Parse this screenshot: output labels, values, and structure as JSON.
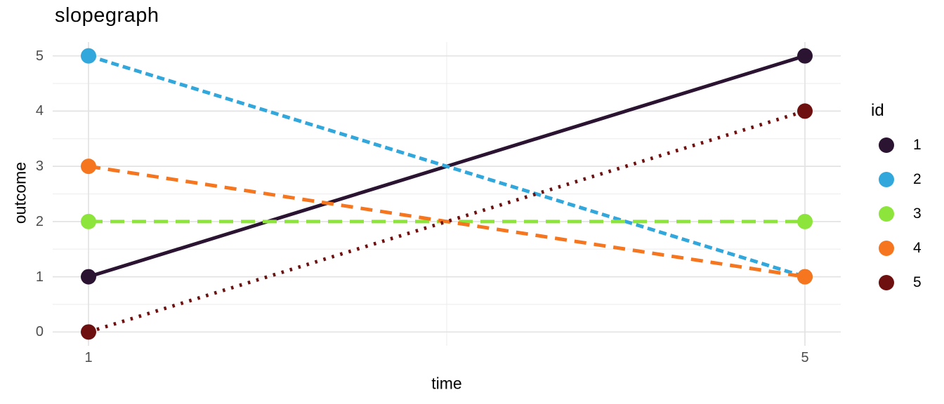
{
  "title": "slopegraph",
  "chart_data": {
    "type": "line",
    "subtype": "slopegraph",
    "title": "slopegraph",
    "xlabel": "time",
    "ylabel": "outcome",
    "x": [
      1,
      5
    ],
    "series": [
      {
        "name": "1",
        "values": [
          1,
          5
        ],
        "color": "#2b1432",
        "linetype": "solid",
        "dash": ""
      },
      {
        "name": "2",
        "values": [
          5,
          1
        ],
        "color": "#31a7dc",
        "linetype": "dashed",
        "dash": "11 6"
      },
      {
        "name": "3",
        "values": [
          2,
          2
        ],
        "color": "#8de53c",
        "linetype": "longdash",
        "dash": "20 11"
      },
      {
        "name": "4",
        "values": [
          3,
          1
        ],
        "color": "#f5761f",
        "linetype": "longdash",
        "dash": "17 11"
      },
      {
        "name": "5",
        "values": [
          0,
          4
        ],
        "color": "#6e100f",
        "linetype": "dotted",
        "dash": "3.5 9"
      }
    ],
    "xlim": [
      1,
      5
    ],
    "ylim": [
      0,
      5
    ],
    "x_major_ticks": [
      1,
      5
    ],
    "x_minor_ticks": [
      3
    ],
    "y_major_ticks": [
      0,
      1,
      2,
      3,
      4,
      5
    ],
    "y_minor_ticks": [
      0.5,
      1.5,
      2.5,
      3.5,
      4.5
    ],
    "grid": true,
    "grid_major_color": "#e3e3e3",
    "grid_minor_color": "#ededed",
    "legend": {
      "title": "id",
      "position": "right",
      "entries": [
        "1",
        "2",
        "3",
        "4",
        "5"
      ]
    }
  }
}
